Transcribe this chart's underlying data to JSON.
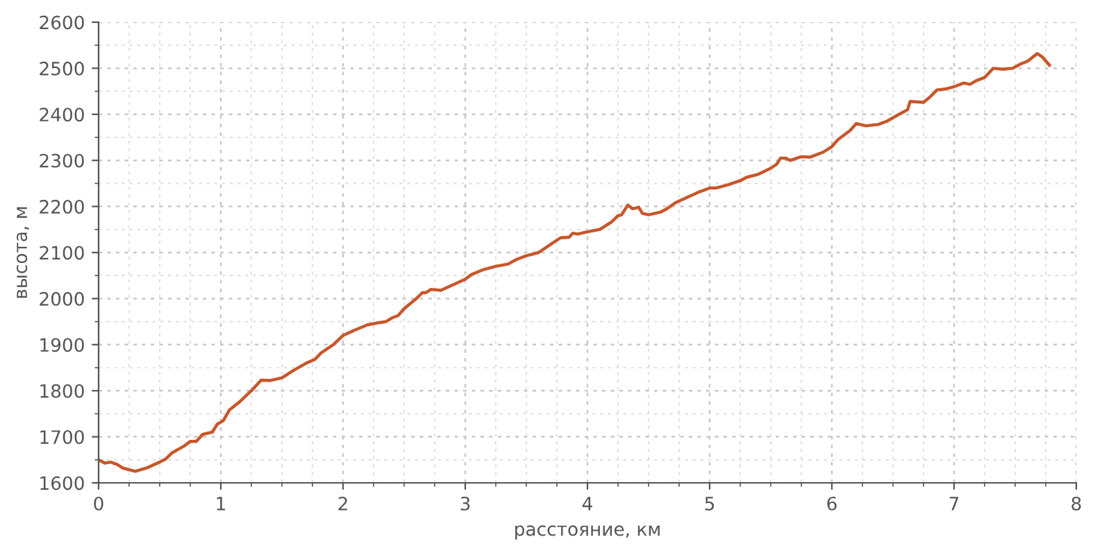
{
  "chart_data": {
    "type": "line",
    "xlabel": "расстояние, км",
    "ylabel": "высота, м",
    "xlim": [
      0,
      8
    ],
    "ylim": [
      1600,
      2600
    ],
    "xticks": [
      0,
      1,
      2,
      3,
      4,
      5,
      6,
      7,
      8
    ],
    "yticks": [
      1600,
      1700,
      1800,
      1900,
      2000,
      2100,
      2200,
      2300,
      2400,
      2500,
      2600
    ],
    "grid": true,
    "marker": "none",
    "line_style": "solid",
    "series": [
      {
        "color": "#c8562a",
        "x": [
          0,
          0.05,
          0.1,
          0.15,
          0.2,
          0.3,
          0.4,
          0.5,
          0.55,
          0.6,
          0.7,
          0.75,
          0.8,
          0.85,
          0.93,
          0.97,
          1.02,
          1.07,
          1.15,
          1.25,
          1.33,
          1.4,
          1.5,
          1.6,
          1.7,
          1.77,
          1.82,
          1.92,
          2.0,
          2.1,
          2.2,
          2.3,
          2.35,
          2.4,
          2.45,
          2.5,
          2.6,
          2.65,
          2.68,
          2.72,
          2.8,
          2.9,
          3.0,
          3.05,
          3.15,
          3.25,
          3.35,
          3.42,
          3.5,
          3.6,
          3.7,
          3.78,
          3.85,
          3.88,
          3.92,
          4.0,
          4.1,
          4.2,
          4.25,
          4.28,
          4.33,
          4.37,
          4.42,
          4.45,
          4.5,
          4.6,
          4.65,
          4.72,
          4.8,
          4.9,
          5.0,
          5.05,
          5.15,
          5.25,
          5.3,
          5.4,
          5.5,
          5.55,
          5.58,
          5.62,
          5.66,
          5.75,
          5.82,
          5.93,
          6.0,
          6.05,
          6.15,
          6.2,
          6.28,
          6.38,
          6.45,
          6.55,
          6.62,
          6.64,
          6.75,
          6.8,
          6.86,
          6.93,
          7.0,
          7.08,
          7.13,
          7.18,
          7.25,
          7.32,
          7.4,
          7.48,
          7.55,
          7.6,
          7.68,
          7.72,
          7.78
        ],
        "values": [
          1650,
          1643,
          1645,
          1640,
          1632,
          1625,
          1633,
          1645,
          1652,
          1665,
          1680,
          1690,
          1690,
          1705,
          1710,
          1727,
          1735,
          1758,
          1775,
          1800,
          1823,
          1822,
          1828,
          1845,
          1860,
          1868,
          1882,
          1900,
          1920,
          1932,
          1943,
          1948,
          1950,
          1958,
          1963,
          1978,
          2000,
          2013,
          2013,
          2020,
          2018,
          2030,
          2042,
          2052,
          2063,
          2070,
          2075,
          2085,
          2093,
          2100,
          2118,
          2132,
          2133,
          2142,
          2140,
          2145,
          2150,
          2167,
          2180,
          2182,
          2203,
          2195,
          2198,
          2185,
          2182,
          2188,
          2195,
          2208,
          2218,
          2230,
          2240,
          2240,
          2247,
          2256,
          2263,
          2270,
          2283,
          2292,
          2305,
          2305,
          2300,
          2308,
          2307,
          2318,
          2330,
          2345,
          2365,
          2380,
          2375,
          2378,
          2385,
          2400,
          2410,
          2428,
          2426,
          2437,
          2453,
          2455,
          2460,
          2468,
          2465,
          2473,
          2480,
          2500,
          2498,
          2500,
          2510,
          2515,
          2532,
          2525,
          2507
        ]
      }
    ]
  }
}
